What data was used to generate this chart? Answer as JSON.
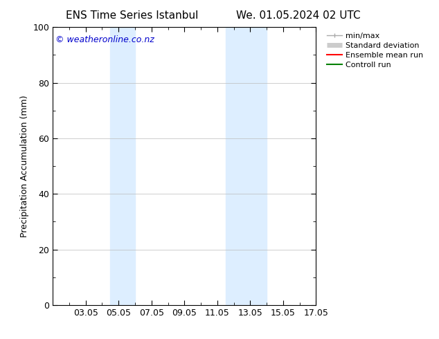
{
  "title_left": "ENS Time Series Istanbul",
  "title_right": "We. 01.05.2024 02 UTC",
  "ylabel": "Precipitation Accumulation (mm)",
  "watermark": "© weatheronline.co.nz",
  "watermark_color": "#0000cc",
  "ylim": [
    0,
    100
  ],
  "yticks": [
    0,
    20,
    40,
    60,
    80,
    100
  ],
  "x_tick_labels": [
    "03.05",
    "05.05",
    "07.05",
    "09.05",
    "11.05",
    "13.05",
    "15.05",
    "17.05"
  ],
  "x_tick_positions": [
    2,
    4,
    6,
    8,
    10,
    12,
    14,
    16
  ],
  "xlim": [
    0,
    16
  ],
  "shaded_regions": [
    {
      "xmin": 3.5,
      "xmax": 5.0,
      "color": "#ddeeff"
    },
    {
      "xmin": 10.5,
      "xmax": 13.0,
      "color": "#ddeeff"
    }
  ],
  "background_color": "#ffffff",
  "plot_bg_color": "#ffffff",
  "grid_color": "#bbbbbb",
  "legend_items": [
    {
      "label": "min/max",
      "color": "#aaaaaa",
      "linewidth": 1.0
    },
    {
      "label": "Standard deviation",
      "color": "#cccccc",
      "linewidth": 5
    },
    {
      "label": "Ensemble mean run",
      "color": "#ff0000",
      "linewidth": 1.5
    },
    {
      "label": "Controll run",
      "color": "#008000",
      "linewidth": 1.5
    }
  ],
  "title_fontsize": 11,
  "label_fontsize": 9,
  "tick_fontsize": 9,
  "watermark_fontsize": 9,
  "legend_fontsize": 8
}
